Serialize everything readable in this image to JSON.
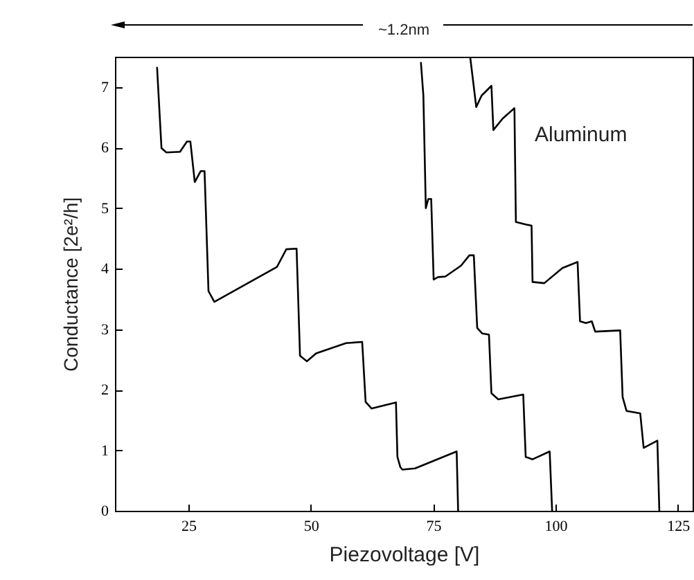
{
  "chart_data": {
    "type": "line",
    "xlabel": "Piezovoltage [V]",
    "ylabel": "Conductance [2e²/h]",
    "annotations": [
      "~1.2nm",
      "Aluminum"
    ],
    "xlim": [
      10,
      128
    ],
    "xticks": [
      25,
      50,
      75,
      100,
      125
    ],
    "ylim": [
      0,
      7.5
    ],
    "yticks": [
      0,
      1,
      2,
      3,
      4,
      5,
      6,
      7
    ],
    "grid": false,
    "marker": "none",
    "line_style": "solid",
    "series": [
      {
        "color": "#000000",
        "x": [
          18.6,
          19.5,
          20.5,
          23.3,
          24.7,
          25.4,
          26.3,
          27.5,
          28.3,
          29.1,
          30.3,
          43.1,
          45.0,
          47.1,
          47.8,
          49.2,
          51.1,
          57.2,
          60.5,
          61.2,
          62.4,
          67.4,
          67.7,
          68.3,
          68.7,
          71.3,
          79.8,
          80.1
        ],
        "values": [
          7.32,
          5.99,
          5.92,
          5.93,
          6.1,
          6.1,
          5.43,
          5.61,
          5.61,
          3.63,
          3.45,
          4.03,
          4.32,
          4.33,
          2.56,
          2.47,
          2.6,
          2.77,
          2.79,
          1.8,
          1.69,
          1.79,
          0.89,
          0.72,
          0.68,
          0.7,
          0.98,
          0
        ]
      },
      {
        "color": "#000000",
        "x": [
          72.5,
          73.0,
          73.5,
          74.0,
          74.6,
          75.1,
          76.0,
          77.5,
          80.7,
          82.4,
          83.3,
          84.0,
          85.0,
          86.4,
          86.9,
          88.3,
          93.4,
          93.9,
          95.3,
          98.8,
          99.3
        ],
        "values": [
          7.4,
          6.86,
          5.0,
          5.15,
          5.15,
          3.82,
          3.86,
          3.87,
          4.05,
          4.22,
          4.22,
          3.02,
          2.93,
          2.91,
          1.94,
          1.84,
          1.92,
          0.89,
          0.85,
          0.98,
          0
        ]
      },
      {
        "color": "#000000",
        "x": [
          82.6,
          83.8,
          84.9,
          86.9,
          87.3,
          89.2,
          91.6,
          91.9,
          93.9,
          95.1,
          95.3,
          97.7,
          101.4,
          104.5,
          105.0,
          106.2,
          107.4,
          108.1,
          113.2,
          113.7,
          114.5,
          117.3,
          118.0,
          120.8,
          121.2
        ],
        "values": [
          7.47,
          6.67,
          6.86,
          7.02,
          6.29,
          6.48,
          6.65,
          4.77,
          4.73,
          4.71,
          3.78,
          3.76,
          4.01,
          4.11,
          3.13,
          3.1,
          3.13,
          2.96,
          2.98,
          1.88,
          1.65,
          1.61,
          1.04,
          1.16,
          0
        ]
      }
    ]
  }
}
